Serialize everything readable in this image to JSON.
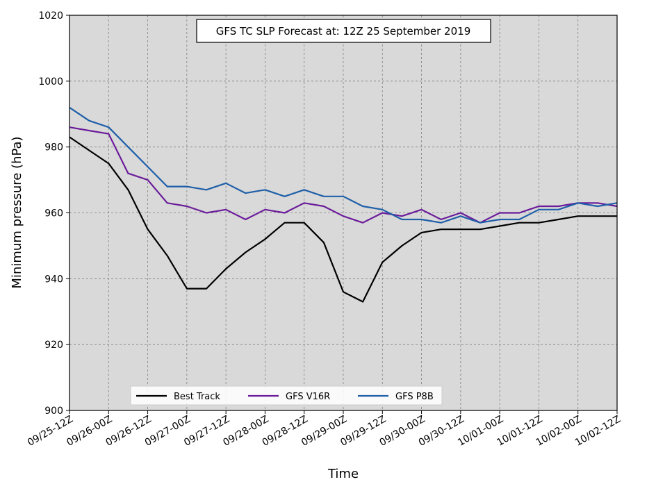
{
  "chart_data": {
    "type": "line",
    "title": "GFS TC SLP Forecast at: 12Z 25 September 2019",
    "xlabel": "Time",
    "ylabel": "Minimum pressure (hPa)",
    "ylim": [
      900,
      1020
    ],
    "yticks": [
      900,
      920,
      940,
      960,
      980,
      1000,
      1020
    ],
    "xticks": [
      "09/25-12Z",
      "09/26-00Z",
      "09/26-12Z",
      "09/27-00Z",
      "09/27-12Z",
      "09/28-00Z",
      "09/28-12Z",
      "09/29-00Z",
      "09/29-12Z",
      "09/30-00Z",
      "09/30-12Z",
      "10/01-00Z",
      "10/01-12Z",
      "10/02-00Z",
      "10/02-12Z"
    ],
    "x": [
      "09/25-12Z",
      "09/25-18Z",
      "09/26-00Z",
      "09/26-06Z",
      "09/26-12Z",
      "09/26-18Z",
      "09/27-00Z",
      "09/27-06Z",
      "09/27-12Z",
      "09/27-18Z",
      "09/28-00Z",
      "09/28-06Z",
      "09/28-12Z",
      "09/28-18Z",
      "09/29-00Z",
      "09/29-06Z",
      "09/29-12Z",
      "09/29-18Z",
      "09/30-00Z",
      "09/30-06Z",
      "09/30-12Z",
      "09/30-18Z",
      "10/01-00Z",
      "10/01-06Z",
      "10/01-12Z",
      "10/01-18Z",
      "10/02-00Z",
      "10/02-06Z",
      "10/02-12Z"
    ],
    "grid": true,
    "legend_position": "bottom-left",
    "background": "#d9d9d9",
    "series": [
      {
        "name": "Best Track",
        "color": "#000000",
        "values": [
          983,
          979,
          975,
          967,
          955,
          947,
          937,
          937,
          943,
          948,
          952,
          957,
          957,
          951,
          936,
          933,
          945,
          950,
          954,
          955,
          955,
          955,
          956,
          957,
          957,
          958,
          959,
          959,
          959
        ]
      },
      {
        "name": "GFS V16R",
        "color": "#6a1b9a",
        "values": [
          986,
          985,
          984,
          972,
          970,
          963,
          962,
          960,
          961,
          958,
          961,
          960,
          963,
          962,
          959,
          957,
          960,
          959,
          961,
          958,
          960,
          957,
          960,
          960,
          962,
          962,
          963,
          963,
          962
        ]
      },
      {
        "name": "GFS P8B",
        "color": "#1f5fa8",
        "values": [
          992,
          988,
          986,
          980,
          974,
          968,
          968,
          967,
          969,
          966,
          967,
          965,
          967,
          965,
          965,
          962,
          961,
          958,
          958,
          957,
          959,
          957,
          958,
          958,
          961,
          961,
          963,
          962,
          963
        ]
      }
    ]
  }
}
